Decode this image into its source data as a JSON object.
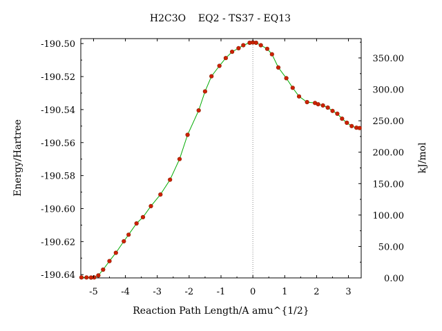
{
  "chart_data": {
    "type": "line",
    "title": "H2C3O    EQ2 - TS37 - EQ13",
    "xlabel": "Reaction Path Length/A amu^{1/2}",
    "ylabel": "Energy/Hartree",
    "y2label": "kJ/mol",
    "xlim": [
      -5.4,
      3.4
    ],
    "ylim": [
      -190.642,
      -190.497
    ],
    "y2lim": [
      0,
      380.7
    ],
    "x_ticks": [
      -5,
      -4,
      -3,
      -2,
      -1,
      0,
      1,
      2,
      3
    ],
    "x_tick_labels": [
      "-5",
      "-4",
      "-3",
      "-2",
      "-1",
      "0",
      "1",
      "2",
      "3"
    ],
    "y_ticks": [
      -190.64,
      -190.62,
      -190.6,
      -190.58,
      -190.56,
      -190.54,
      -190.52,
      -190.5
    ],
    "y_tick_labels": [
      "-190.64",
      "-190.62",
      "-190.60",
      "-190.58",
      "-190.56",
      "-190.54",
      "-190.52",
      "-190.50"
    ],
    "y2_ticks": [
      0,
      50,
      100,
      150,
      200,
      250,
      300,
      350
    ],
    "y2_tick_labels": [
      "0.00",
      "50.00",
      "100.00",
      "150.00",
      "200.00",
      "250.00",
      "300.00",
      "350.00"
    ],
    "ts_marker_x": 0,
    "grid": false,
    "legend": "none",
    "colors": {
      "line": "#00aa00",
      "marker": "#cc2200",
      "marker_edge": "#8b1a00",
      "ts_line": "#888888"
    },
    "series": [
      {
        "x": [
          -5.38,
          -5.22,
          -5.08,
          -4.98,
          -4.85,
          -4.7,
          -4.5,
          -4.3,
          -4.05,
          -3.9,
          -3.65,
          -3.45,
          -3.2,
          -2.9,
          -2.6,
          -2.3,
          -2.05,
          -1.7,
          -1.5,
          -1.3,
          -1.05,
          -0.85,
          -0.65,
          -0.45,
          -0.3,
          -0.1,
          0.0,
          0.1,
          0.25,
          0.45,
          0.6,
          0.8,
          1.05,
          1.25,
          1.45,
          1.7,
          1.95,
          2.05,
          2.2,
          2.35,
          2.5,
          2.65,
          2.8,
          2.95,
          3.1,
          3.25,
          3.35
        ],
        "y": [
          -190.6417,
          -190.6417,
          -190.6418,
          -190.6417,
          -190.6405,
          -190.637,
          -190.6318,
          -190.6268,
          -190.6198,
          -190.6158,
          -190.609,
          -190.6052,
          -190.5985,
          -190.5915,
          -190.5825,
          -190.57,
          -190.5553,
          -190.5405,
          -190.529,
          -190.5198,
          -190.5135,
          -190.5088,
          -190.505,
          -190.5028,
          -190.501,
          -190.4995,
          -190.4993,
          -190.4995,
          -190.501,
          -190.5032,
          -190.5065,
          -190.5145,
          -190.521,
          -190.5268,
          -190.532,
          -190.5355,
          -190.536,
          -190.5368,
          -190.5375,
          -190.5388,
          -190.5408,
          -190.5425,
          -190.5455,
          -190.548,
          -190.55,
          -190.551,
          -190.5512
        ]
      }
    ]
  }
}
